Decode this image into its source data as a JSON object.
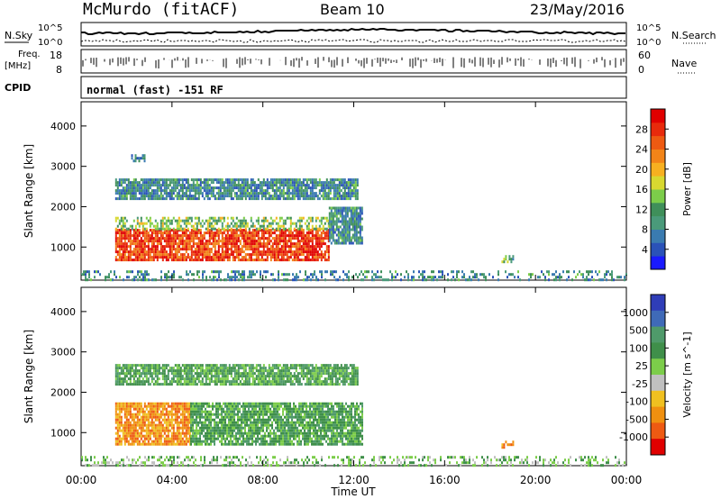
{
  "header": {
    "station": "McMurdo (fitACF)",
    "beam": "Beam 10",
    "date": "23/May/2016"
  },
  "left_labels": {
    "nsky": "N.Sky",
    "freq_line1": "Freq.",
    "freq_line2": "[MHz]",
    "cpid": "CPID"
  },
  "right_labels": {
    "nsearch": "N.Search",
    "nave": "Nave"
  },
  "noise_axis": {
    "top": "10^5",
    "bottom": "10^0",
    "right_top": "10^5",
    "right_bottom": "10^0"
  },
  "freq_axis": {
    "top": "18",
    "bottom": "8",
    "right_top": "60",
    "right_bottom": "0"
  },
  "cpid_text": "normal (fast) -151 RF",
  "chart_data": [
    {
      "type": "heatmap",
      "title": "",
      "xlabel": "Time UT",
      "ylabel": "Slant Range [km]",
      "x_ticks": [
        "00:00",
        "04:00",
        "08:00",
        "12:00",
        "16:00",
        "20:00",
        "00:00"
      ],
      "y_ticks": [
        "1000",
        "2000",
        "3000",
        "4000"
      ],
      "xlim_hours": [
        0,
        24
      ],
      "ylim_km": [
        180,
        4600
      ],
      "colorbar": {
        "label": "Power [dB]",
        "ticks": [
          "4",
          "8",
          "12",
          "16",
          "20",
          "24",
          "28"
        ],
        "range": [
          0,
          32
        ],
        "colors": [
          "#1a1aff",
          "#2a52b8",
          "#3a7bb0",
          "#4a9a7a",
          "#3f8f5a",
          "#7ccd4a",
          "#d8d830",
          "#f7b020",
          "#f28418",
          "#ee5a12",
          "#e82a0c",
          "#e00000"
        ]
      },
      "regions": [
        {
          "t0": 1.5,
          "t1": 10.9,
          "r0": 650,
          "r1": 1450,
          "level": 28
        },
        {
          "t0": 1.5,
          "t1": 10.9,
          "r0": 1450,
          "r1": 1750,
          "level": 14
        },
        {
          "t0": 10.9,
          "t1": 12.4,
          "r0": 1100,
          "r1": 2000,
          "level": 8
        },
        {
          "t0": 1.5,
          "t1": 12.2,
          "r0": 2200,
          "r1": 2700,
          "level": 8
        },
        {
          "t0": 2.2,
          "t1": 2.8,
          "r0": 3100,
          "r1": 3300,
          "level": 8
        },
        {
          "t0": 0.0,
          "t1": 24.0,
          "r0": 200,
          "r1": 420,
          "level": 8
        },
        {
          "t0": 18.5,
          "t1": 19.0,
          "r0": 600,
          "r1": 800,
          "level": 12
        }
      ]
    },
    {
      "type": "heatmap",
      "title": "",
      "xlabel": "Time UT",
      "ylabel": "Slant Range [km]",
      "x_ticks": [
        "00:00",
        "04:00",
        "08:00",
        "12:00",
        "16:00",
        "20:00",
        "00:00"
      ],
      "y_ticks": [
        "1000",
        "2000",
        "3000",
        "4000"
      ],
      "xlim_hours": [
        0,
        24
      ],
      "ylim_km": [
        180,
        4600
      ],
      "colorbar": {
        "label": "Velocity [m s^-1]",
        "ticks": [
          "1000",
          "500",
          "100",
          "25",
          "-25",
          "-100",
          "-500",
          "-1000"
        ],
        "colors": [
          "#2f3db8",
          "#3f6ab8",
          "#4f9a6a",
          "#3f8f4a",
          "#7ccd4a",
          "#c0c0c0",
          "#f0c020",
          "#f09010",
          "#ee5a12",
          "#e00000"
        ]
      },
      "regions": [
        {
          "t0": 1.5,
          "t1": 4.8,
          "r0": 700,
          "r1": 1750,
          "velocity": -100
        },
        {
          "t0": 4.8,
          "t1": 12.4,
          "r0": 700,
          "r1": 1750,
          "velocity": 100
        },
        {
          "t0": 1.5,
          "t1": 12.2,
          "r0": 2200,
          "r1": 2700,
          "velocity": 100
        },
        {
          "t0": 0.0,
          "t1": 24.0,
          "r0": 200,
          "r1": 420,
          "velocity": 25
        },
        {
          "t0": 18.5,
          "t1": 19.0,
          "r0": 600,
          "r1": 800,
          "velocity": -100
        }
      ]
    }
  ]
}
